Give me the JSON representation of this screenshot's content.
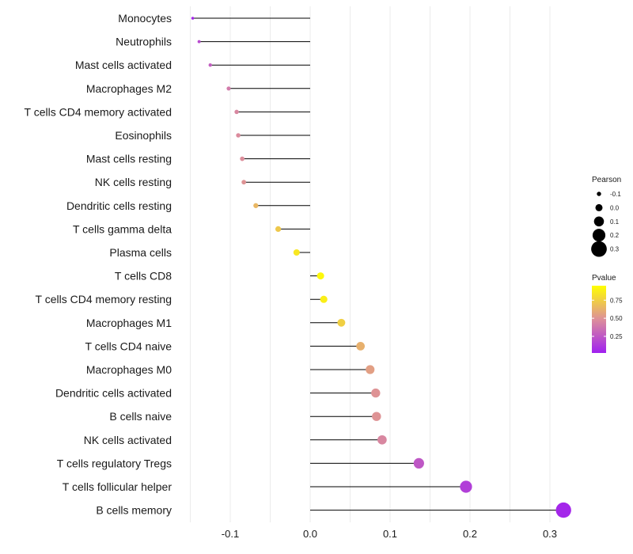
{
  "chart_data": {
    "type": "lollipop",
    "title": "",
    "xlabel": "",
    "ylabel": "",
    "xlim": [
      -0.152,
      0.325
    ],
    "xticks": [
      -0.1,
      0.0,
      0.1,
      0.2,
      0.3
    ],
    "xtick_labels": [
      "-0.1",
      "0.0",
      "0.1",
      "0.2",
      "0.3"
    ],
    "categories": [
      "Monocytes",
      "Neutrophils",
      "Mast cells activated",
      "Macrophages M2",
      "T cells CD4 memory activated",
      "Eosinophils",
      "Mast cells resting",
      "NK cells resting",
      "Dendritic cells resting",
      "T cells gamma delta",
      "Plasma cells",
      "T cells CD8",
      "T cells CD4 memory resting",
      "Macrophages M1",
      "T cells CD4 naive",
      "Macrophages M0",
      "Dendritic cells activated",
      "B cells naive",
      "NK cells activated",
      "T cells regulatory  Tregs ",
      "T cells follicular helper",
      "B cells memory"
    ],
    "values": [
      -0.147,
      -0.139,
      -0.125,
      -0.102,
      -0.092,
      -0.09,
      -0.085,
      -0.083,
      -0.068,
      -0.04,
      -0.017,
      0.013,
      0.017,
      0.039,
      0.063,
      0.075,
      0.082,
      0.083,
      0.09,
      0.136,
      0.195,
      0.317
    ],
    "pvalues": [
      0.05,
      0.2,
      0.28,
      0.4,
      0.45,
      0.47,
      0.48,
      0.5,
      0.65,
      0.72,
      0.85,
      0.92,
      0.88,
      0.75,
      0.62,
      0.55,
      0.5,
      0.5,
      0.45,
      0.25,
      0.15,
      0.05
    ],
    "legend": {
      "size": {
        "title": "Pearson",
        "labels": [
          "-0.1",
          "0.0",
          "0.1",
          "0.2",
          "0.3"
        ],
        "values": [
          -0.1,
          0.0,
          0.1,
          0.2,
          0.3
        ]
      },
      "color": {
        "title": "Pvalue",
        "labels": [
          "0.75",
          "0.50",
          "0.25"
        ],
        "values": [
          0.75,
          0.5,
          0.25
        ],
        "range": [
          0.02,
          0.95
        ],
        "low_color": "#a020f0",
        "mid_color": "#dd8f9a",
        "high_color": "#ffff00"
      },
      "placement": "right"
    },
    "grid": true
  }
}
